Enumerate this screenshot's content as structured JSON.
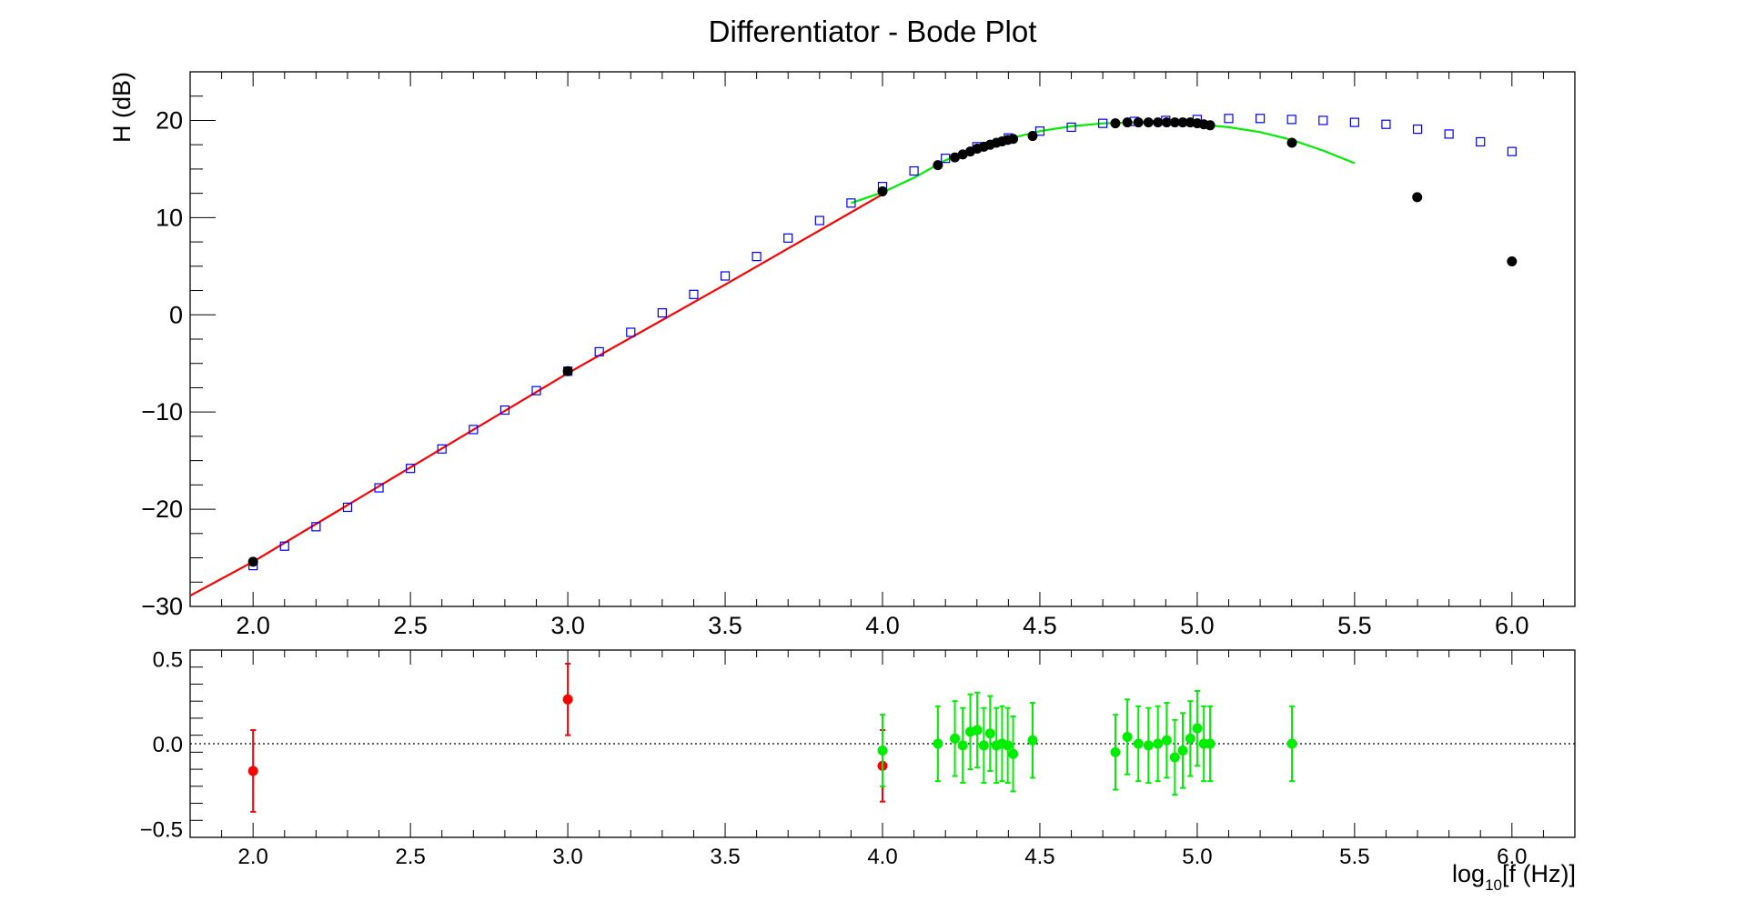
{
  "chart_data": [
    {
      "type": "scatter",
      "title": "Differentiator - Bode Plot",
      "ylabel": "H (dB)",
      "xlim": [
        1.8,
        6.2
      ],
      "ylim": [
        -30,
        25
      ],
      "xticks": [
        "2.0",
        "2.5",
        "3.0",
        "3.5",
        "4.0",
        "4.5",
        "5.0",
        "5.5",
        "6.0"
      ],
      "yticks": [
        "−30",
        "−20",
        "−10",
        "0",
        "10",
        "20"
      ],
      "grid": false,
      "colors": {
        "measured": "#000000",
        "model": "#0000ff",
        "fit_low": "#ff0000",
        "fit_high": "#00ee00"
      },
      "series": [
        {
          "style": "black-filled-circles",
          "x": [
            2.0,
            3.0,
            4.0,
            4.176,
            4.23,
            4.255,
            4.279,
            4.301,
            4.322,
            4.342,
            4.362,
            4.38,
            4.398,
            4.415,
            4.477,
            4.74,
            4.778,
            4.813,
            4.845,
            4.875,
            4.903,
            4.929,
            4.954,
            4.978,
            5.0,
            5.021,
            5.041,
            5.301,
            5.699,
            6.0
          ],
          "y": [
            -25.4,
            -5.8,
            12.7,
            15.4,
            16.2,
            16.5,
            16.8,
            17.1,
            17.3,
            17.5,
            17.7,
            17.85,
            18.0,
            18.1,
            18.4,
            19.7,
            19.8,
            19.8,
            19.8,
            19.8,
            19.8,
            19.8,
            19.8,
            19.8,
            19.7,
            19.6,
            19.5,
            17.7,
            12.1,
            5.5
          ]
        },
        {
          "style": "blue-open-squares",
          "x": [
            2.0,
            2.1,
            2.2,
            2.3,
            2.4,
            2.5,
            2.6,
            2.7,
            2.8,
            2.9,
            3.0,
            3.1,
            3.2,
            3.3,
            3.4,
            3.5,
            3.6,
            3.7,
            3.8,
            3.9,
            4.0,
            4.1,
            4.2,
            4.3,
            4.4,
            4.5,
            4.6,
            4.7,
            4.8,
            4.9,
            5.0,
            5.1,
            5.2,
            5.3,
            5.4,
            5.5,
            5.6,
            5.7,
            5.8,
            5.9,
            6.0
          ],
          "y": [
            -25.8,
            -23.8,
            -21.8,
            -19.8,
            -17.8,
            -15.8,
            -13.8,
            -11.8,
            -9.8,
            -7.8,
            -5.8,
            -3.8,
            -1.8,
            0.2,
            2.1,
            4.0,
            6.0,
            7.9,
            9.7,
            11.5,
            13.2,
            14.8,
            16.1,
            17.3,
            18.2,
            18.9,
            19.3,
            19.7,
            19.9,
            20.0,
            20.1,
            20.2,
            20.2,
            20.1,
            20.0,
            19.8,
            19.6,
            19.1,
            18.6,
            17.8,
            16.8
          ]
        },
        {
          "style": "red-line",
          "x": [
            1.8,
            2.0,
            2.5,
            3.0,
            3.5,
            4.0
          ],
          "y": [
            -28.9,
            -25.4,
            -15.7,
            -6.0,
            3.1,
            12.4
          ]
        },
        {
          "style": "green-curve",
          "x": [
            3.9,
            4.0,
            4.1,
            4.2,
            4.3,
            4.4,
            4.5,
            4.6,
            4.7,
            4.8,
            4.9,
            5.0,
            5.1,
            5.2,
            5.3,
            5.4,
            5.5
          ],
          "y": [
            11.5,
            12.6,
            14.1,
            15.9,
            17.2,
            18.1,
            18.9,
            19.4,
            19.7,
            19.8,
            19.8,
            19.6,
            19.3,
            18.8,
            18.0,
            16.9,
            15.6
          ]
        }
      ]
    },
    {
      "type": "scatter",
      "xlabel_main": "log",
      "xlabel_sub": "10",
      "xlabel_tail": "[f (Hz)]",
      "xlim": [
        1.8,
        6.2
      ],
      "ylim": [
        -0.55,
        0.55
      ],
      "xticks": [
        "2.0",
        "2.5",
        "3.0",
        "3.5",
        "4.0",
        "4.5",
        "5.0",
        "5.5",
        "6.0"
      ],
      "yticks": [
        "−0.5",
        "0.0",
        "0.5"
      ],
      "reference_line": 0.0,
      "colors": {
        "low": "#ff0000",
        "high": "#00ee00",
        "reference": "#000000"
      },
      "series": [
        {
          "style": "red-points-errorbars",
          "x": [
            2.0,
            3.0,
            4.0
          ],
          "y": [
            -0.16,
            0.26,
            -0.13
          ],
          "err": [
            0.24,
            0.21,
            0.21
          ]
        },
        {
          "style": "green-points-errorbars",
          "x": [
            4.0,
            4.176,
            4.23,
            4.255,
            4.279,
            4.301,
            4.322,
            4.342,
            4.362,
            4.38,
            4.398,
            4.415,
            4.477,
            4.74,
            4.778,
            4.813,
            4.845,
            4.875,
            4.903,
            4.929,
            4.954,
            4.978,
            5.0,
            5.021,
            5.041,
            5.301
          ],
          "y": [
            -0.04,
            0.0,
            0.03,
            -0.01,
            0.07,
            0.08,
            -0.01,
            0.06,
            -0.01,
            0.0,
            -0.01,
            -0.06,
            0.02,
            -0.05,
            0.04,
            0.0,
            -0.01,
            0.0,
            0.02,
            -0.08,
            -0.04,
            0.03,
            0.09,
            0.0,
            0.0,
            0.0
          ],
          "err": [
            0.21,
            0.22,
            0.22,
            0.22,
            0.22,
            0.22,
            0.22,
            0.22,
            0.22,
            0.22,
            0.22,
            0.22,
            0.22,
            0.22,
            0.22,
            0.22,
            0.22,
            0.22,
            0.22,
            0.22,
            0.22,
            0.22,
            0.22,
            0.22,
            0.22,
            0.22
          ]
        }
      ]
    }
  ]
}
